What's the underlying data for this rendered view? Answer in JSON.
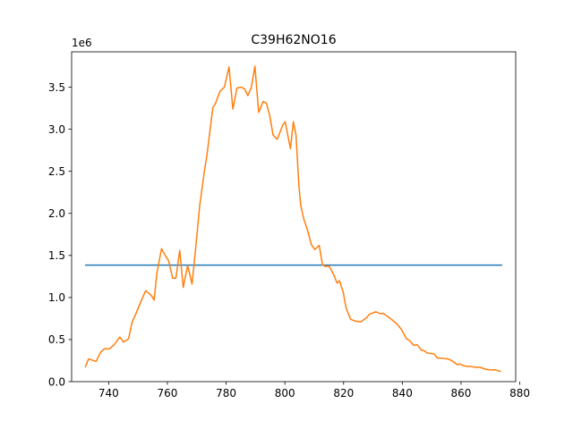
{
  "chart_data": {
    "type": "line",
    "title": "C39H62NO16",
    "xlabel": "",
    "ylabel": "",
    "y_offset_label": "1e6",
    "xlim": [
      727.4,
      878.6
    ],
    "ylim": [
      -0.0,
      3.92
    ],
    "x_ticks": [
      740,
      760,
      780,
      800,
      820,
      840,
      860,
      880
    ],
    "y_ticks": [
      0.0,
      0.5,
      1.0,
      1.5,
      2.0,
      2.5,
      3.0,
      3.5
    ],
    "x_tick_labels": [
      "740",
      "760",
      "780",
      "800",
      "820",
      "840",
      "860",
      "880"
    ],
    "y_tick_labels": [
      "0.0",
      "0.5",
      "1.0",
      "1.5",
      "2.0",
      "2.5",
      "3.0",
      "3.5"
    ],
    "grid": false,
    "series": [
      {
        "color": "#1f77b4",
        "x": [
          732,
          874
        ],
        "y": [
          1.385,
          1.385
        ]
      },
      {
        "color": "#ff7f0e",
        "x": [
          732,
          733.2,
          735.7,
          737.3,
          738.5,
          740.3,
          741.9,
          743.8,
          745.1,
          746.8,
          748,
          749.2,
          751.2,
          752.6,
          754.4,
          755.5,
          756.4,
          758,
          759.6,
          760.4,
          761.8,
          762.9,
          764.2,
          765.4,
          766.9,
          768.4,
          769.6,
          771,
          772.6,
          773.5,
          775.5,
          776.3,
          777.9,
          779.4,
          781,
          782.3,
          783.7,
          785.1,
          786.3,
          787.4,
          788.6,
          789.8,
          791.1,
          792.6,
          793.7,
          794.8,
          796,
          797.4,
          799.3,
          800.1,
          801.9,
          802.9,
          803.8,
          804.8,
          805.4,
          806.4,
          807.8,
          809,
          810.2,
          811.7,
          812.8,
          813.6,
          815.1,
          816.4,
          817.8,
          818.6,
          819.9,
          820.8,
          822.4,
          823.9,
          825.8,
          827.9,
          828.7,
          831,
          832.3,
          833.6,
          834.8,
          836.3,
          838.3,
          839.7,
          841.4,
          842.4,
          843.9,
          845,
          846.6,
          847.3,
          848.5,
          850.8,
          851.9,
          852.8,
          855.5,
          856.8,
          858.8,
          859.5,
          860.9,
          862,
          863.5,
          865,
          866.6,
          868,
          869.8,
          871.7,
          873.6
        ],
        "y": [
          0.17,
          0.27,
          0.24,
          0.35,
          0.39,
          0.39,
          0.44,
          0.53,
          0.47,
          0.51,
          0.71,
          0.8,
          0.97,
          1.08,
          1.03,
          0.97,
          1.28,
          1.58,
          1.48,
          1.44,
          1.23,
          1.23,
          1.56,
          1.12,
          1.38,
          1.16,
          1.57,
          2.09,
          2.5,
          2.7,
          3.26,
          3.3,
          3.45,
          3.5,
          3.74,
          3.24,
          3.49,
          3.5,
          3.48,
          3.4,
          3.5,
          3.75,
          3.2,
          3.33,
          3.31,
          3.17,
          2.93,
          2.88,
          3.05,
          3.09,
          2.77,
          3.09,
          2.93,
          2.32,
          2.1,
          1.94,
          1.79,
          1.63,
          1.57,
          1.62,
          1.39,
          1.37,
          1.37,
          1.29,
          1.17,
          1.2,
          1.06,
          0.88,
          0.74,
          0.72,
          0.71,
          0.76,
          0.8,
          0.83,
          0.81,
          0.81,
          0.78,
          0.74,
          0.68,
          0.62,
          0.51,
          0.49,
          0.43,
          0.44,
          0.37,
          0.37,
          0.34,
          0.33,
          0.28,
          0.28,
          0.27,
          0.25,
          0.2,
          0.21,
          0.19,
          0.18,
          0.18,
          0.17,
          0.17,
          0.15,
          0.14,
          0.14,
          0.12
        ]
      }
    ]
  }
}
